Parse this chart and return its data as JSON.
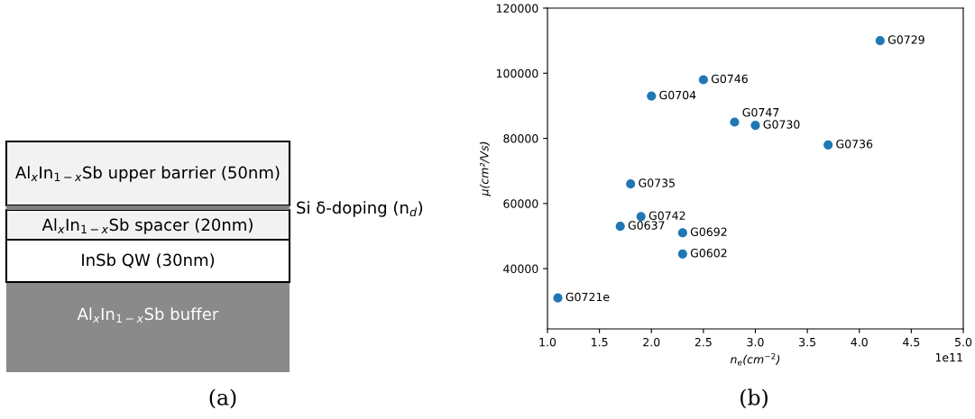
{
  "chart_data": [
    {
      "type": "other",
      "annotations": [
        "Al$_{x}$In$_{1−x}$Sb upper barrier (50nm)",
        "Si δ-doping (n$_{d}$)",
        "Al$_{x}$In$_{1−x}$Sb spacer (20nm)",
        "InSb QW (30nm)",
        "Al$_{x}$In$_{1−x}$Sb buffer",
        "(a)"
      ]
    },
    {
      "type": "scatter",
      "xlabel": "n$_{e}$(cm$^{−2}$)",
      "ylabel": "μ(cm²/Vs)",
      "x": [
        4.2,
        2.5,
        2.0,
        2.8,
        3.0,
        3.7,
        1.8,
        1.9,
        1.7,
        2.3,
        2.3,
        1.1
      ],
      "series": [
        {
          "color": "#1f77b4",
          "values": [
            110000,
            98000,
            93000,
            85000,
            84000,
            78000,
            66000,
            56000,
            53000,
            51000,
            44500,
            31000
          ]
        }
      ],
      "marker": "circle",
      "xlim": [
        1.0,
        5.0
      ],
      "xticks": [
        {
          "value": 1.0,
          "label": "1.0"
        },
        1.5,
        {
          "value": 2.0,
          "label": "2.0"
        },
        2.5,
        {
          "value": 3.0,
          "label": "3.0"
        },
        3.5,
        {
          "value": 4.0,
          "label": "4.0"
        },
        4.5,
        {
          "value": 5.0,
          "label": "5.0"
        }
      ],
      "ylim": [
        21500,
        120000
      ],
      "yticks": [
        40000,
        60000,
        80000,
        100000,
        120000
      ],
      "grid": false,
      "annotations": [
        {
          "text": "G0729",
          "x": 4.2,
          "y": 110000
        },
        {
          "text": "G0746",
          "x": 2.5,
          "y": 98000
        },
        {
          "text": "G0704",
          "x": 2.0,
          "y": 93000
        },
        {
          "text": "G0747",
          "x": 2.8,
          "y": 85000
        },
        {
          "text": "G0730",
          "x": 3.0,
          "y": 84000
        },
        {
          "text": "G0736",
          "x": 3.7,
          "y": 78000
        },
        {
          "text": "G0735",
          "x": 1.8,
          "y": 66000
        },
        {
          "text": "G0742",
          "x": 1.9,
          "y": 56000
        },
        {
          "text": "G0637",
          "x": 1.7,
          "y": 53000
        },
        {
          "text": "G0692",
          "x": 2.3,
          "y": 51000
        },
        {
          "text": "G0602",
          "x": 2.3,
          "y": 44500
        },
        {
          "text": "G0721e",
          "x": 1.1,
          "y": 31000
        },
        "1e11",
        "(b)"
      ]
    }
  ]
}
